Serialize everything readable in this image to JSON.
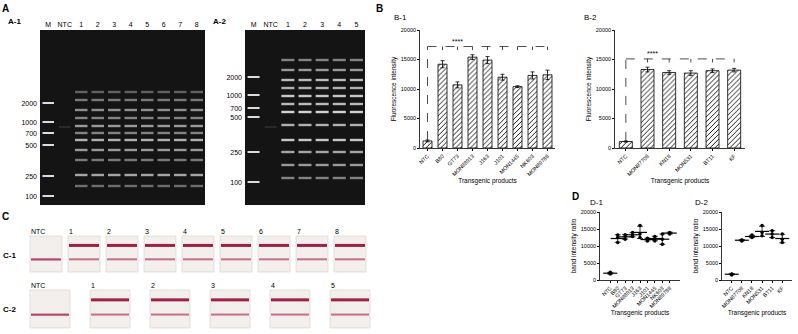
{
  "panel_labels": [
    "A",
    "B",
    "C",
    "D"
  ],
  "gels": [
    {
      "label": "A-1",
      "lanes": [
        "M",
        "NTC",
        "1",
        "2",
        "3",
        "4",
        "5",
        "6",
        "7",
        "8"
      ],
      "ladder": [
        2000,
        1000,
        700,
        500,
        250,
        100
      ]
    },
    {
      "label": "A-2",
      "lanes": [
        "M",
        "NTC",
        "1",
        "2",
        "3",
        "4",
        "5"
      ],
      "ladder": [
        2000,
        1000,
        700,
        500,
        250,
        100
      ]
    }
  ],
  "strips": [
    {
      "label": "C-1",
      "lanes": [
        "NTC",
        "1",
        "2",
        "3",
        "4",
        "5",
        "6",
        "7",
        "8"
      ]
    },
    {
      "label": "C-2",
      "lanes": [
        "NTC",
        "1",
        "2",
        "3",
        "4",
        "5"
      ]
    }
  ],
  "chart_data": [
    {
      "title": "B-1",
      "type": "bar",
      "categories": [
        "NTC",
        "B80",
        "GT73",
        "MON88913",
        "J163",
        "J101",
        "MON1445",
        "NK603",
        "MON89788"
      ],
      "values": [
        1200,
        14200,
        10700,
        15400,
        14900,
        12000,
        10400,
        12300,
        12400
      ],
      "errors": [
        150,
        600,
        500,
        400,
        600,
        500,
        150,
        600,
        800
      ],
      "xlabel": "Transgenic products",
      "ylabel": "Fluorescence intensity",
      "ylim": [
        0,
        20000
      ],
      "yticks": [
        0,
        5000,
        10000,
        15000,
        20000
      ],
      "color": "#ffffff",
      "grid": false,
      "annotations": [
        "****"
      ]
    },
    {
      "title": "B-2",
      "type": "bar",
      "categories": [
        "NTC",
        "MON87708",
        "KN18",
        "MON531",
        "BT11",
        "KF"
      ],
      "values": [
        1100,
        13300,
        12800,
        12700,
        13100,
        13200
      ],
      "errors": [
        100,
        400,
        300,
        400,
        300,
        300
      ],
      "xlabel": "Transgenic products",
      "ylabel": "Fluorescence intensity",
      "ylim": [
        0,
        20000
      ],
      "yticks": [
        0,
        5000,
        10000,
        15000,
        20000
      ],
      "color": "#ffffff",
      "grid": false,
      "annotations": [
        "****"
      ]
    },
    {
      "title": "D-1",
      "type": "scatter",
      "categories": [
        "NTC",
        "B80",
        "GT73",
        "MON88913",
        "J163",
        "J101",
        "MON1445",
        "NK603",
        "MON89788"
      ],
      "points": [
        [
          1800,
          2000,
          2300
        ],
        [
          11000,
          12500,
          13200
        ],
        [
          12000,
          12800,
          13300
        ],
        [
          12800,
          13200,
          14000
        ],
        [
          12500,
          13500,
          16000
        ],
        [
          11500,
          12000,
          12300
        ],
        [
          11500,
          12200,
          12800
        ],
        [
          10500,
          12000,
          13500
        ],
        [
          13500,
          13800,
          14000
        ]
      ],
      "values": [
        2000,
        12200,
        12700,
        13300,
        14000,
        11900,
        12200,
        12000,
        13800
      ],
      "errors": [
        250,
        1100,
        650,
        600,
        1800,
        400,
        650,
        1500,
        250
      ],
      "xlabel": "Transgenic products",
      "ylabel": "band intensity ratio",
      "ylim": [
        0,
        20000
      ],
      "yticks": [
        0,
        5000,
        10000,
        15000,
        20000
      ],
      "color": "#000000",
      "grid": false
    },
    {
      "title": "D-2",
      "type": "scatter",
      "categories": [
        "NTC",
        "MON87708",
        "KN18",
        "MON531",
        "BT11",
        "KF"
      ],
      "points": [
        [
          1500,
          1700,
          1800
        ],
        [
          11500,
          11700,
          11800
        ],
        [
          12500,
          12800,
          13200
        ],
        [
          13000,
          14000,
          16000
        ],
        [
          12500,
          13500,
          14500
        ],
        [
          11000,
          12000,
          13500
        ]
      ],
      "values": [
        1700,
        11700,
        12800,
        14300,
        13500,
        12200
      ],
      "errors": [
        150,
        150,
        350,
        1500,
        1000,
        1250
      ],
      "xlabel": "Transgenic products",
      "ylabel": "band intensity ratio",
      "ylim": [
        0,
        20000
      ],
      "yticks": [
        0,
        5000,
        10000,
        15000,
        20000
      ],
      "color": "#000000",
      "grid": false
    }
  ]
}
